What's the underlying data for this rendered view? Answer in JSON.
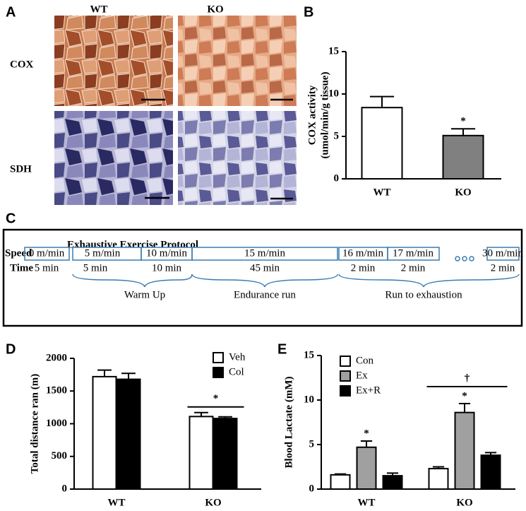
{
  "panels": {
    "A": {
      "panel": "A",
      "columns": [
        "WT",
        "KO"
      ],
      "rows": [
        "COX",
        "SDH"
      ]
    },
    "C": {
      "panel": "C",
      "title": "Exhaustive Exercise Protocol",
      "row_labels": [
        "Speed",
        "Time"
      ],
      "stages": [
        {
          "speed": "0 m/min",
          "time": "5 min"
        },
        {
          "speed": "5 m/min",
          "time": "5 min"
        },
        {
          "speed": "10 m/min",
          "time": "10 min"
        },
        {
          "speed": "15 m/min",
          "time": "45 min"
        },
        {
          "speed": "16 m/min",
          "time": "2 min"
        },
        {
          "speed": "17 m/min",
          "time": "2 min"
        },
        {
          "speed": "30 m/min",
          "time": "2 min"
        }
      ],
      "phases": [
        "Warm Up",
        "Endurance run",
        "Run to exhaustion"
      ]
    }
  },
  "chart_data": [
    {
      "type": "bar",
      "panel": "B",
      "y_label": [
        "COX activity",
        "(umol/min/g tissue)"
      ],
      "categories": [
        "WT",
        "KO"
      ],
      "values": [
        8.4,
        5.1
      ],
      "errors": [
        1.3,
        0.8
      ],
      "colors": [
        "#ffffff",
        "#808080"
      ],
      "ylim": [
        0,
        15
      ],
      "yticks": [
        0,
        5,
        10,
        15
      ],
      "annotations": [
        {
          "text": "*",
          "category": 1
        }
      ]
    },
    {
      "type": "bar",
      "panel": "D",
      "y_label": [
        "Total distance ran (m)"
      ],
      "categories": [
        "WT",
        "KO"
      ],
      "series": [
        {
          "name": "Veh",
          "color": "#ffffff",
          "values": [
            1720,
            1110
          ],
          "errors": [
            100,
            60
          ]
        },
        {
          "name": "Col",
          "color": "#000000",
          "values": [
            1680,
            1080
          ],
          "errors": [
            90,
            25
          ]
        }
      ],
      "ylim": [
        0,
        2000
      ],
      "yticks": [
        0,
        500,
        1000,
        1500,
        2000
      ],
      "annotations": [
        {
          "text": "*",
          "category": 1
        }
      ]
    },
    {
      "type": "bar",
      "panel": "E",
      "y_label": [
        "Blood Lactate (mM)"
      ],
      "categories": [
        "WT",
        "KO"
      ],
      "series": [
        {
          "name": "Con",
          "color": "#ffffff",
          "values": [
            1.6,
            2.3
          ],
          "errors": [
            0.1,
            0.2
          ]
        },
        {
          "name": "Ex",
          "color": "#a0a0a0",
          "values": [
            4.7,
            8.6
          ],
          "errors": [
            0.7,
            1.0
          ]
        },
        {
          "name": "Ex+R",
          "color": "#000000",
          "values": [
            1.5,
            3.8
          ],
          "errors": [
            0.3,
            0.3
          ]
        }
      ],
      "ylim": [
        0,
        15
      ],
      "yticks": [
        0,
        5,
        10,
        15
      ],
      "annotations": [
        {
          "text": "*",
          "category": 0,
          "series": 1
        },
        {
          "text": "*",
          "category": 1,
          "series": 1
        },
        {
          "text": "†",
          "category": 1
        }
      ]
    }
  ]
}
